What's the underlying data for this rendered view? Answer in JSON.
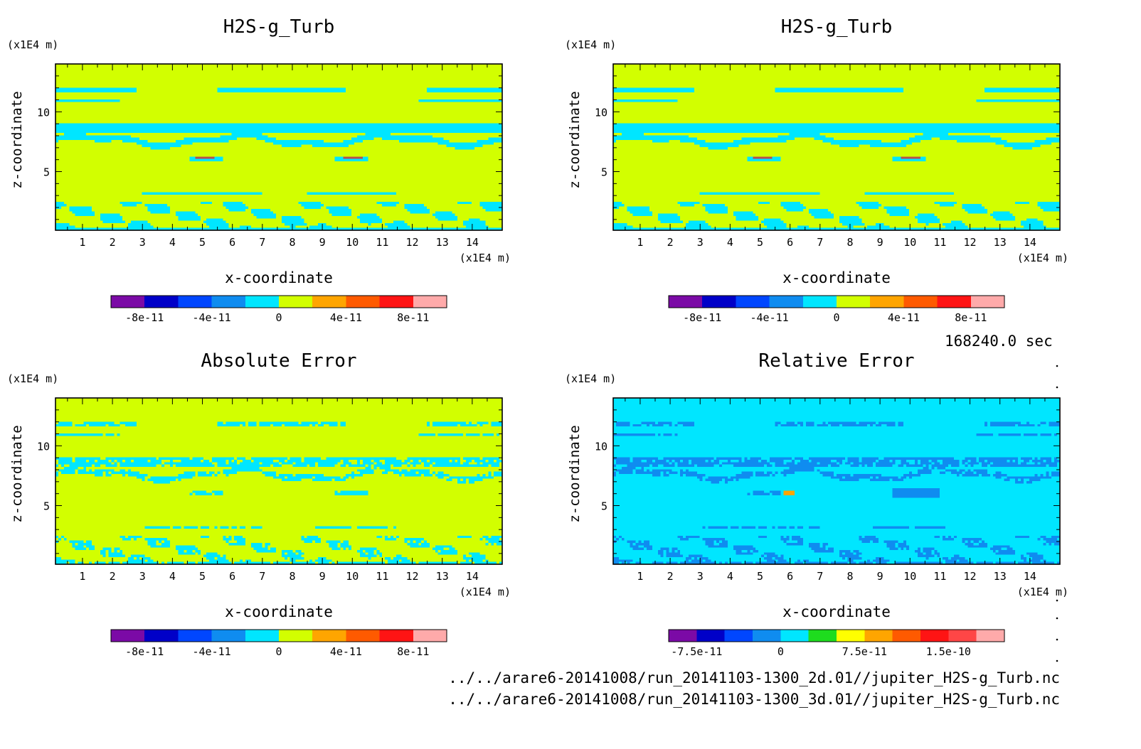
{
  "time_label": "168240.0 sec",
  "files": [
    "../../arare6-20141008/run_20141103-1300_2d.01//jupiter_H2S-g_Turb.nc",
    "../../arare6-20141008/run_20141103-1300_3d.01//jupiter_H2S-g_Turb.nc"
  ],
  "chart_data": [
    {
      "type": "heatmap",
      "title": "H2S-g_Turb",
      "xlabel": "x-coordinate",
      "ylabel": "z-coordinate",
      "x_unit": "(x1E4 m)",
      "y_unit": "(x1E4 m)",
      "xlim": [
        0.1,
        15.0
      ],
      "ylim": [
        0.1,
        14.0
      ],
      "x_ticks": [
        1,
        2,
        3,
        4,
        5,
        6,
        7,
        8,
        9,
        10,
        11,
        12,
        13,
        14
      ],
      "y_ticks": [
        5,
        10
      ],
      "pattern": "field",
      "colorbar": {
        "colors": [
          "#7b0aa6",
          "#0000c8",
          "#0046ff",
          "#0f8cf0",
          "#00e6ff",
          "#d2ff00",
          "#ffa500",
          "#ff5a00",
          "#ff1414",
          "#ffaaaa"
        ],
        "tick_labels": [
          "-8e-11",
          "-4e-11",
          "0",
          "4e-11",
          "8e-11"
        ],
        "tick_index": [
          1,
          3,
          5,
          7,
          9
        ]
      }
    },
    {
      "type": "heatmap",
      "title": "H2S-g_Turb",
      "xlabel": "x-coordinate",
      "ylabel": "z-coordinate",
      "x_unit": "(x1E4 m)",
      "y_unit": "(x1E4 m)",
      "xlim": [
        0.1,
        15.0
      ],
      "ylim": [
        0.1,
        14.0
      ],
      "x_ticks": [
        1,
        2,
        3,
        4,
        5,
        6,
        7,
        8,
        9,
        10,
        11,
        12,
        13,
        14
      ],
      "y_ticks": [
        5,
        10
      ],
      "pattern": "field",
      "colorbar": {
        "colors": [
          "#7b0aa6",
          "#0000c8",
          "#0046ff",
          "#0f8cf0",
          "#00e6ff",
          "#d2ff00",
          "#ffa500",
          "#ff5a00",
          "#ff1414",
          "#ffaaaa"
        ],
        "tick_labels": [
          "-8e-11",
          "-4e-11",
          "0",
          "4e-11",
          "8e-11"
        ],
        "tick_index": [
          1,
          3,
          5,
          7,
          9
        ]
      }
    },
    {
      "type": "heatmap",
      "title": "Absolute Error",
      "xlabel": "x-coordinate",
      "ylabel": "z-coordinate",
      "x_unit": "(x1E4 m)",
      "y_unit": "(x1E4 m)",
      "xlim": [
        0.1,
        15.0
      ],
      "ylim": [
        0.1,
        14.0
      ],
      "x_ticks": [
        1,
        2,
        3,
        4,
        5,
        6,
        7,
        8,
        9,
        10,
        11,
        12,
        13,
        14
      ],
      "y_ticks": [
        5,
        10
      ],
      "pattern": "abs",
      "colorbar": {
        "colors": [
          "#7b0aa6",
          "#0000c8",
          "#0046ff",
          "#0f8cf0",
          "#00e6ff",
          "#d2ff00",
          "#ffa500",
          "#ff5a00",
          "#ff1414",
          "#ffaaaa"
        ],
        "tick_labels": [
          "-8e-11",
          "-4e-11",
          "0",
          "4e-11",
          "8e-11"
        ],
        "tick_index": [
          1,
          3,
          5,
          7,
          9
        ]
      }
    },
    {
      "type": "heatmap",
      "title": "Relative Error",
      "xlabel": "x-coordinate",
      "ylabel": "z-coordinate",
      "x_unit": "(x1E4 m)",
      "y_unit": "(x1E4 m)",
      "xlim": [
        0.1,
        15.0
      ],
      "ylim": [
        0.1,
        14.0
      ],
      "x_ticks": [
        1,
        2,
        3,
        4,
        5,
        6,
        7,
        8,
        9,
        10,
        11,
        12,
        13,
        14
      ],
      "y_ticks": [
        5,
        10
      ],
      "pattern": "rel",
      "colorbar": {
        "colors": [
          "#7b0aa6",
          "#0000c8",
          "#0046ff",
          "#0f8cf0",
          "#00e6ff",
          "#1edc1e",
          "#ffff00",
          "#ffa500",
          "#ff5a00",
          "#ff1414",
          "#ff4646",
          "#ffaaaa"
        ],
        "tick_labels": [
          "-7.5e-11",
          "0",
          "7.5e-11",
          "1.5e-10"
        ],
        "tick_index": [
          1,
          4,
          7,
          10
        ]
      }
    }
  ]
}
